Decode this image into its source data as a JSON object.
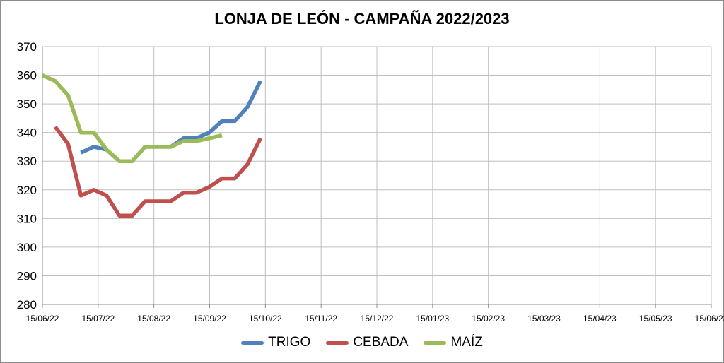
{
  "chart_data": {
    "type": "line",
    "title": "LONJA DE LEÓN - CAMPAÑA 2022/2023",
    "xlabel": "",
    "ylabel": "",
    "ylim": [
      280,
      370
    ],
    "yticks": [
      "280",
      "290",
      "300",
      "310",
      "320",
      "330",
      "340",
      "350",
      "360",
      "370"
    ],
    "xlim": [
      "2022-06-15",
      "2023-06-15"
    ],
    "xtick_labels": [
      "15/06/22",
      "15/07/22",
      "15/08/22",
      "15/09/22",
      "15/10/22",
      "15/11/22",
      "15/12/22",
      "15/01/23",
      "15/02/23",
      "15/03/23",
      "15/04/23",
      "15/05/23",
      "15/06/23"
    ],
    "grid": true,
    "legend_position": "bottom",
    "series": [
      {
        "name": "TRIGO",
        "color": "#4f81bd",
        "points": [
          [
            "2022-07-06",
            333
          ],
          [
            "2022-07-13",
            335
          ],
          [
            "2022-07-20",
            334
          ],
          [
            "2022-07-27",
            330
          ],
          [
            "2022-08-03",
            330
          ],
          [
            "2022-08-10",
            335
          ],
          [
            "2022-08-17",
            335
          ],
          [
            "2022-08-24",
            335
          ],
          [
            "2022-08-31",
            338
          ],
          [
            "2022-09-07",
            338
          ],
          [
            "2022-09-14",
            340
          ],
          [
            "2022-09-21",
            344
          ],
          [
            "2022-09-28",
            344
          ],
          [
            "2022-10-05",
            349
          ],
          [
            "2022-10-12",
            358
          ]
        ]
      },
      {
        "name": "CEBADA",
        "color": "#c0504d",
        "points": [
          [
            "2022-06-22",
            342
          ],
          [
            "2022-06-29",
            336
          ],
          [
            "2022-07-06",
            318
          ],
          [
            "2022-07-13",
            320
          ],
          [
            "2022-07-20",
            318
          ],
          [
            "2022-07-27",
            311
          ],
          [
            "2022-08-03",
            311
          ],
          [
            "2022-08-10",
            316
          ],
          [
            "2022-08-17",
            316
          ],
          [
            "2022-08-24",
            316
          ],
          [
            "2022-08-31",
            319
          ],
          [
            "2022-09-07",
            319
          ],
          [
            "2022-09-14",
            321
          ],
          [
            "2022-09-21",
            324
          ],
          [
            "2022-09-28",
            324
          ],
          [
            "2022-10-05",
            329
          ],
          [
            "2022-10-12",
            338
          ]
        ]
      },
      {
        "name": "MAÍZ",
        "color": "#9bbb59",
        "points": [
          [
            "2022-06-15",
            360
          ],
          [
            "2022-06-22",
            358
          ],
          [
            "2022-06-29",
            353
          ],
          [
            "2022-07-06",
            340
          ],
          [
            "2022-07-13",
            340
          ],
          [
            "2022-07-20",
            334
          ],
          [
            "2022-07-27",
            330
          ],
          [
            "2022-08-03",
            330
          ],
          [
            "2022-08-10",
            335
          ],
          [
            "2022-08-17",
            335
          ],
          [
            "2022-08-24",
            335
          ],
          [
            "2022-08-31",
            337
          ],
          [
            "2022-09-07",
            337
          ],
          [
            "2022-09-14",
            338
          ],
          [
            "2022-09-21",
            339
          ]
        ]
      }
    ]
  }
}
